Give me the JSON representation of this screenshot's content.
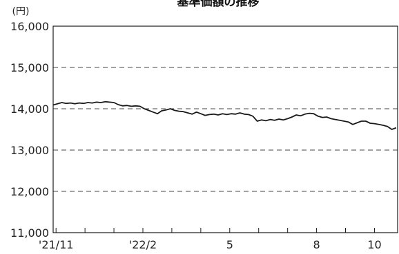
{
  "chart_data": {
    "type": "line",
    "title": "基準価額の推移",
    "unit_label": "(円)",
    "xlabel": "",
    "ylabel": "",
    "ylim": [
      11000,
      16000
    ],
    "y_ticks": [
      "16,000",
      "15,000",
      "14,000",
      "13,000",
      "12,000",
      "11,000"
    ],
    "y_tick_values": [
      16000,
      15000,
      14000,
      13000,
      12000,
      11000
    ],
    "x_ticks": [
      {
        "label": "'21/11",
        "month_index": 0
      },
      {
        "label": "'22/2",
        "month_index": 3
      },
      {
        "label": "5",
        "month_index": 6
      },
      {
        "label": "8",
        "month_index": 9
      },
      {
        "label": "10",
        "month_index": 11
      }
    ],
    "x_minor_month_indices": [
      0,
      1,
      2,
      3,
      4,
      5,
      6,
      7,
      8,
      9,
      10,
      11
    ],
    "x_range": [
      0,
      11.9
    ],
    "grid": "horizontal-dashed",
    "legend": "none",
    "line_color": "#1a1a1a",
    "series": [
      {
        "x": [
          0,
          0.15,
          0.3,
          0.45,
          0.6,
          0.75,
          0.9,
          1.05,
          1.2,
          1.35,
          1.5,
          1.65,
          1.8,
          1.95,
          2.1,
          2.25,
          2.4,
          2.55,
          2.7,
          2.85,
          3.0,
          3.15,
          3.3,
          3.45,
          3.6,
          3.75,
          3.9,
          4.05,
          4.2,
          4.35,
          4.5,
          4.65,
          4.8,
          4.95,
          5.1,
          5.25,
          5.4,
          5.55,
          5.7,
          5.85,
          6.0,
          6.15,
          6.3,
          6.45,
          6.6,
          6.75,
          6.9,
          7.05,
          7.2,
          7.35,
          7.5,
          7.65,
          7.8,
          7.95,
          8.1,
          8.25,
          8.4,
          8.55,
          8.7,
          8.85,
          9.0,
          9.15,
          9.3,
          9.45,
          9.6,
          9.75,
          9.9,
          10.05,
          10.2,
          10.35,
          10.5,
          10.65,
          10.8,
          10.95,
          11.1,
          11.25,
          11.4,
          11.55,
          11.7,
          11.85
        ],
        "values": [
          14090,
          14120,
          14150,
          14130,
          14140,
          14120,
          14140,
          14130,
          14150,
          14140,
          14160,
          14150,
          14170,
          14160,
          14150,
          14100,
          14070,
          14080,
          14060,
          14070,
          14060,
          14000,
          13960,
          13920,
          13880,
          13950,
          13970,
          14000,
          13960,
          13940,
          13930,
          13900,
          13870,
          13920,
          13880,
          13840,
          13860,
          13870,
          13850,
          13880,
          13860,
          13880,
          13870,
          13900,
          13870,
          13860,
          13820,
          13700,
          13730,
          13710,
          13740,
          13720,
          13750,
          13730,
          13760,
          13800,
          13850,
          13830,
          13870,
          13890,
          13880,
          13820,
          13790,
          13800,
          13760,
          13740,
          13720,
          13700,
          13680,
          13620,
          13660,
          13700,
          13700,
          13650,
          13640,
          13620,
          13600,
          13570,
          13500,
          13540
        ]
      }
    ]
  }
}
